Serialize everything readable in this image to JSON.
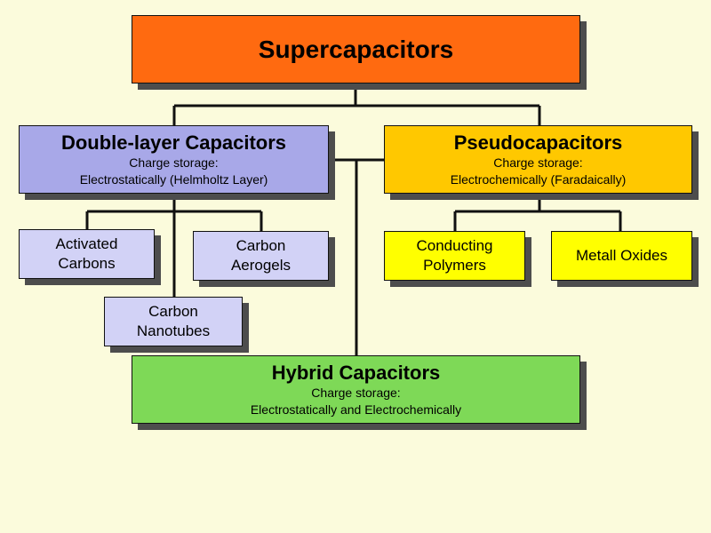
{
  "diagram": {
    "root": {
      "title": "Supercapacitors"
    },
    "double_layer": {
      "title": "Double-layer Capacitors",
      "line1": "Charge storage:",
      "line2": "Electrostatically (Helmholtz  Layer)"
    },
    "pseudo": {
      "title": "Pseudocapacitors",
      "line1": "Charge storage:",
      "line2": "Electrochemically  (Faradaically)"
    },
    "hybrid": {
      "title": "Hybrid Capacitors",
      "line1": "Charge storage:",
      "line2": "Electrostatically and Electrochemically"
    },
    "leaves": {
      "activated_carbons": [
        "Activated",
        "Carbons"
      ],
      "carbon_aerogels": [
        "Carbon",
        "Aerogels"
      ],
      "carbon_nanotubes": [
        "Carbon",
        "Nanotubes"
      ],
      "conducting_polymers": [
        "Conducting",
        "Polymers"
      ],
      "metall_oxides": [
        "Metall Oxides"
      ]
    },
    "colors": {
      "background": "#fbfbdc",
      "root": "#ff6a10",
      "double_layer": "#a8a8e8",
      "double_layer_children": "#d2d2f6",
      "pseudo": "#ffc800",
      "pseudo_children": "#ffff00",
      "hybrid": "#7ed957"
    }
  }
}
